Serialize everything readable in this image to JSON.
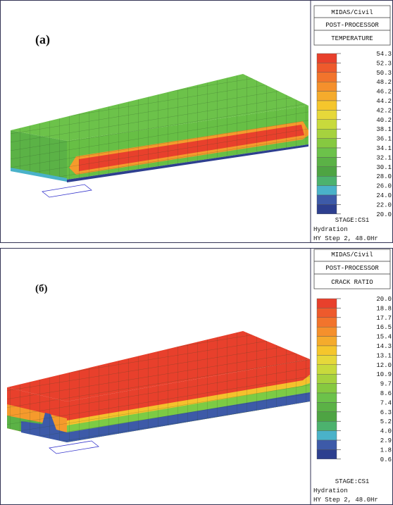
{
  "panels": [
    {
      "label": "(a)",
      "software": "MIDAS/Civil",
      "module": "POST-PROCESSOR",
      "result": "TEMPERATURE",
      "scale": [
        "54.3",
        "52.3",
        "50.3",
        "48.2",
        "46.2",
        "44.2",
        "42.2",
        "40.2",
        "38.1",
        "36.1",
        "34.1",
        "32.1",
        "30.1",
        "28.0",
        "26.0",
        "24.0",
        "22.0",
        "20.0"
      ],
      "stage": "STAGE:CS1",
      "analysis": "Hydration",
      "step": "HY Step 2, 48.0Hr"
    },
    {
      "label": "(б)",
      "software": "MIDAS/Civil",
      "module": "POST-PROCESSOR",
      "result": "CRACK RATIO",
      "scale": [
        "20.0",
        "18.8",
        "17.7",
        "16.5",
        "15.4",
        "14.3",
        "13.1",
        "12.0",
        "10.9",
        "9.7",
        "8.6",
        "7.4",
        "6.3",
        "5.2",
        "4.0",
        "2.9",
        "1.8",
        "0.6"
      ],
      "stage": "STAGE:CS1",
      "analysis": "Hydration",
      "step": "HY Step 2, 48.0Hr"
    }
  ]
}
